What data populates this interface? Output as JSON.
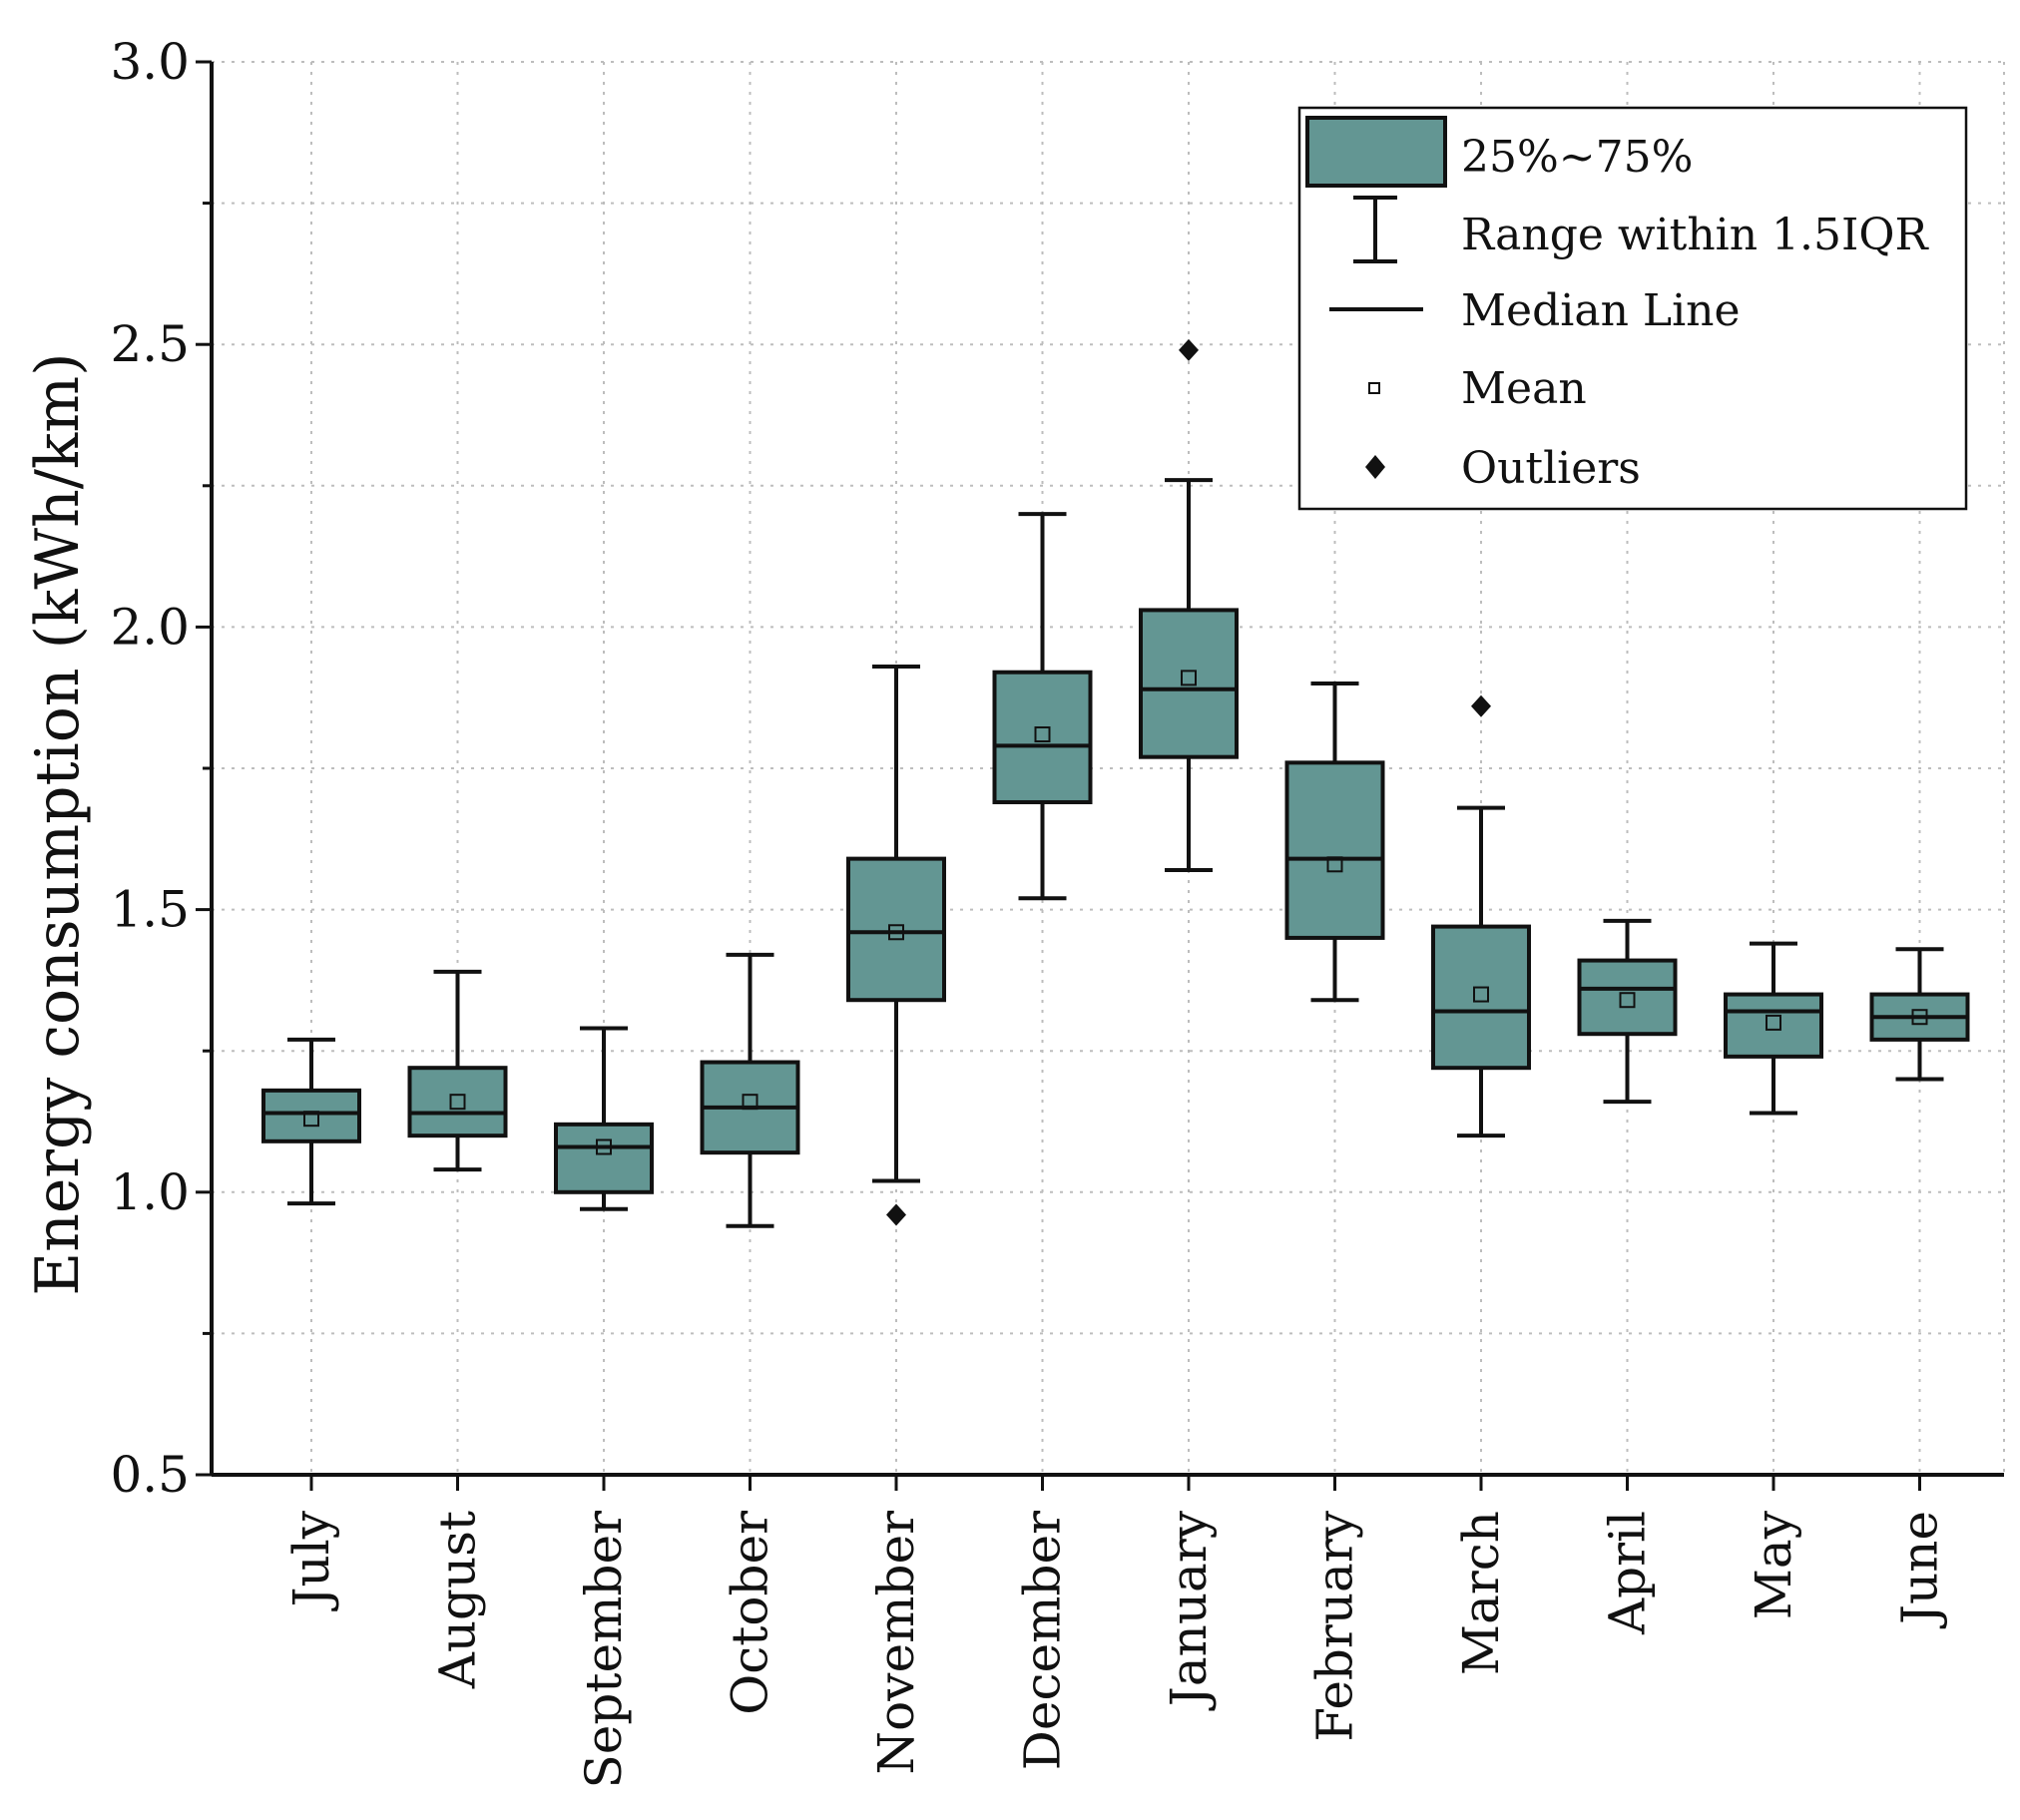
{
  "colors": {
    "box_fill": "#639693",
    "stroke": "#111111",
    "grid": "#bdbdbd",
    "background": "#ffffff"
  },
  "chart_data": {
    "type": "box",
    "title": "",
    "xlabel": "",
    "ylabel": "Energy consumption (kWh/km)",
    "ylim": [
      0.5,
      3.0
    ],
    "yticks": [
      "0.5",
      "1.0",
      "1.5",
      "2.0",
      "2.5",
      "3.0"
    ],
    "grid": true,
    "legend_position": "top-right",
    "legend": [
      {
        "key": "box",
        "label": "25%~75%"
      },
      {
        "key": "range",
        "label": "Range within 1.5IQR"
      },
      {
        "key": "median",
        "label": "Median Line"
      },
      {
        "key": "mean",
        "label": "Mean"
      },
      {
        "key": "outlier",
        "label": "Outliers"
      }
    ],
    "categories": [
      "July",
      "August",
      "September",
      "October",
      "November",
      "December",
      "January",
      "February",
      "March",
      "April",
      "May",
      "June"
    ],
    "series": [
      {
        "name": "July",
        "whisker_low": 0.98,
        "q1": 1.09,
        "median": 1.14,
        "q3": 1.18,
        "whisker_high": 1.27,
        "mean": 1.13,
        "outliers": []
      },
      {
        "name": "August",
        "whisker_low": 1.04,
        "q1": 1.1,
        "median": 1.14,
        "q3": 1.22,
        "whisker_high": 1.39,
        "mean": 1.16,
        "outliers": []
      },
      {
        "name": "September",
        "whisker_low": 0.97,
        "q1": 1.0,
        "median": 1.08,
        "q3": 1.12,
        "whisker_high": 1.29,
        "mean": 1.08,
        "outliers": []
      },
      {
        "name": "October",
        "whisker_low": 0.94,
        "q1": 1.07,
        "median": 1.15,
        "q3": 1.23,
        "whisker_high": 1.42,
        "mean": 1.16,
        "outliers": []
      },
      {
        "name": "November",
        "whisker_low": 1.02,
        "q1": 1.34,
        "median": 1.46,
        "q3": 1.59,
        "whisker_high": 1.93,
        "mean": 1.46,
        "outliers": [
          0.96
        ]
      },
      {
        "name": "December",
        "whisker_low": 1.52,
        "q1": 1.69,
        "median": 1.79,
        "q3": 1.92,
        "whisker_high": 2.2,
        "mean": 1.81,
        "outliers": []
      },
      {
        "name": "January",
        "whisker_low": 1.57,
        "q1": 1.77,
        "median": 1.89,
        "q3": 2.03,
        "whisker_high": 2.26,
        "mean": 1.91,
        "outliers": [
          2.49
        ]
      },
      {
        "name": "February",
        "whisker_low": 1.34,
        "q1": 1.45,
        "median": 1.59,
        "q3": 1.76,
        "whisker_high": 1.9,
        "mean": 1.58,
        "outliers": []
      },
      {
        "name": "March",
        "whisker_low": 1.1,
        "q1": 1.22,
        "median": 1.32,
        "q3": 1.47,
        "whisker_high": 1.68,
        "mean": 1.35,
        "outliers": [
          1.86
        ]
      },
      {
        "name": "April",
        "whisker_low": 1.16,
        "q1": 1.28,
        "median": 1.36,
        "q3": 1.41,
        "whisker_high": 1.48,
        "mean": 1.34,
        "outliers": []
      },
      {
        "name": "May",
        "whisker_low": 1.14,
        "q1": 1.24,
        "median": 1.32,
        "q3": 1.35,
        "whisker_high": 1.44,
        "mean": 1.3,
        "outliers": []
      },
      {
        "name": "June",
        "whisker_low": 1.2,
        "q1": 1.27,
        "median": 1.31,
        "q3": 1.35,
        "whisker_high": 1.43,
        "mean": 1.31,
        "outliers": []
      }
    ]
  }
}
